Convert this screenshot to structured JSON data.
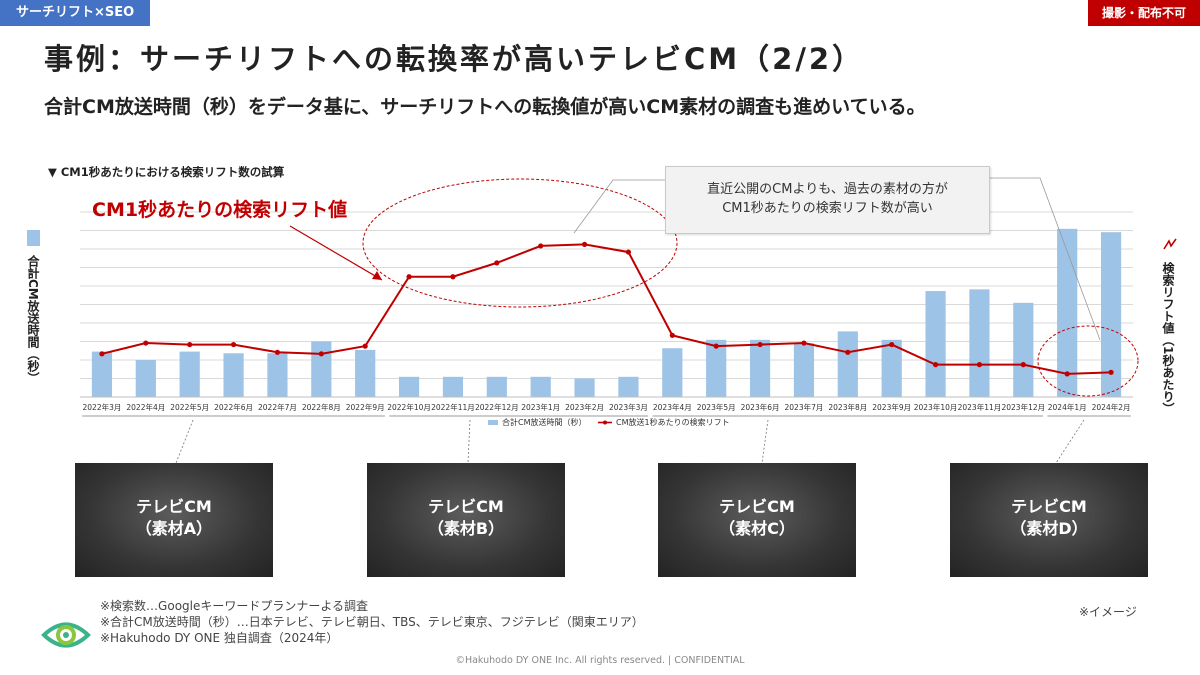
{
  "header": {
    "tag_left": "サーチリフト×SEO",
    "tag_right": "撮影・配布不可",
    "title": "事例：サーチリフトへの転換率が高いテレビCM（2/2）",
    "subtitle": "合計CM放送時間（秒）をデータ基に、サーチリフトへの転換値が高いCM素材の調査も進めいている。"
  },
  "annotations": {
    "red_callout": "CM1秒あたりの検索リフト値",
    "box_line1": "直近公開のCMよりも、過去の素材の方が",
    "box_line2": "CM1秒あたりの検索リフト数が高い"
  },
  "thumbnails": [
    {
      "line1": "テレビCM",
      "line2": "（素材A）"
    },
    {
      "line1": "テレビCM",
      "line2": "（素材B）"
    },
    {
      "line1": "テレビCM",
      "line2": "（素材C）"
    },
    {
      "line1": "テレビCM",
      "line2": "（素材D）"
    }
  ],
  "notes": [
    "※検索数…Googleキーワードプランナーよる調査",
    "※合計CM放送時間（秒）…日本テレビ、テレビ朝日、TBS、テレビ東京、フジテレビ（関東エリア）",
    "※Hakuhodo DY ONE 独自調査（2024年）"
  ],
  "image_note": "※イメージ",
  "footer": "©Hakuhodo DY ONE Inc. All rights reserved. | CONFIDENTIAL",
  "colors": {
    "bar": "#9dc3e6",
    "line": "#c00000",
    "accent_blue": "#4472c4",
    "accent_red": "#c00000"
  },
  "chart_data": {
    "type": "bar",
    "title": "▼ CM1秒あたりにおける検索リフト数の試算",
    "categories": [
      "2022年3月",
      "2022年4月",
      "2022年5月",
      "2022年6月",
      "2022年7月",
      "2022年8月",
      "2022年9月",
      "2022年10月",
      "2022年11月",
      "2022年12月",
      "2023年1月",
      "2023年2月",
      "2023年3月",
      "2023年4月",
      "2023年5月",
      "2023年6月",
      "2023年7月",
      "2023年8月",
      "2023年9月",
      "2023年10月",
      "2023年11月",
      "2023年12月",
      "2024年1月",
      "2024年2月"
    ],
    "series": [
      {
        "name": "合計CM放送時間（秒）",
        "type": "bar",
        "axis": "left",
        "values": [
          27,
          22,
          27,
          26,
          26,
          33,
          28,
          12,
          12,
          12,
          12,
          11,
          12,
          29,
          34,
          34,
          32,
          39,
          34,
          63,
          64,
          56,
          100,
          98
        ]
      },
      {
        "name": "CM放送1秒あたりの検索リフト",
        "type": "line",
        "axis": "right",
        "values": [
          28,
          35,
          34,
          34,
          29,
          28,
          33,
          78,
          78,
          87,
          98,
          99,
          94,
          40,
          33,
          34,
          35,
          29,
          34,
          21,
          21,
          21,
          15,
          16
        ]
      }
    ],
    "ylabel_left": "合計CM放送時間（秒）",
    "ylabel_right": "検索リフト値（1秒あたり）",
    "ylim_left": [
      0,
      110
    ],
    "ylim_right": [
      0,
      120
    ],
    "grid": true,
    "legend": "bottom",
    "y_tick_labels": false
  }
}
